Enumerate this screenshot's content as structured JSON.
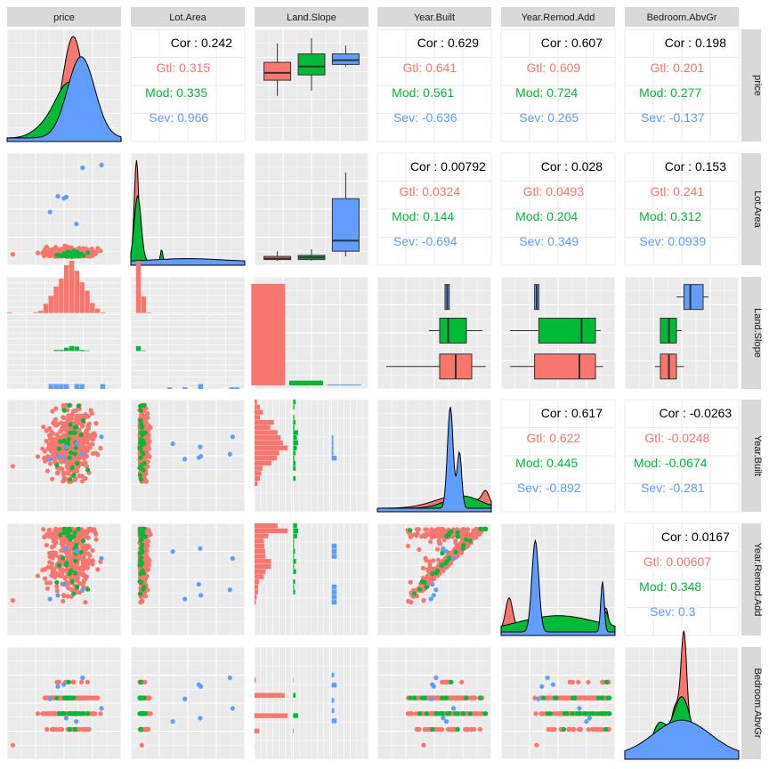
{
  "chart_data": {
    "type": "scatterplot-matrix",
    "variables": [
      "price",
      "Lot.Area",
      "Land.Slope",
      "Year.Built",
      "Year.Remod.Add",
      "Bedroom.AbvGr"
    ],
    "groups": [
      {
        "name": "Gtl",
        "color": "#F8766D"
      },
      {
        "name": "Mod",
        "color": "#00BA38"
      },
      {
        "name": "Sev",
        "color": "#619CFF"
      }
    ],
    "correlations": [
      {
        "row": "price",
        "col": "Lot.Area",
        "overall": "0.242",
        "Gtl": "0.315",
        "Mod": "0.335",
        "Sev": "0.966"
      },
      {
        "row": "price",
        "col": "Year.Built",
        "overall": "0.629",
        "Gtl": "0.641",
        "Mod": "0.561",
        "Sev": "-0.636"
      },
      {
        "row": "price",
        "col": "Year.Remod.Add",
        "overall": "0.607",
        "Gtl": "0.609",
        "Mod": "0.724",
        "Sev": "0.265"
      },
      {
        "row": "price",
        "col": "Bedroom.AbvGr",
        "overall": "0.198",
        "Gtl": "0.201",
        "Mod": "0.277",
        "Sev": "-0.137"
      },
      {
        "row": "Lot.Area",
        "col": "Year.Built",
        "overall": "0.00792",
        "Gtl": "0.0324",
        "Mod": "0.144",
        "Sev": "-0.694"
      },
      {
        "row": "Lot.Area",
        "col": "Year.Remod.Add",
        "overall": "0.028",
        "Gtl": "0.0493",
        "Mod": "0.204",
        "Sev": "0.349"
      },
      {
        "row": "Lot.Area",
        "col": "Bedroom.AbvGr",
        "overall": "0.153",
        "Gtl": "0.241",
        "Mod": "0.312",
        "Sev": "0.0939"
      },
      {
        "row": "Year.Built",
        "col": "Year.Remod.Add",
        "overall": "0.617",
        "Gtl": "0.622",
        "Mod": "0.445",
        "Sev": "-0.892"
      },
      {
        "row": "Year.Built",
        "col": "Bedroom.AbvGr",
        "overall": "-0.0263",
        "Gtl": "-0.0248",
        "Mod": "-0.0674",
        "Sev": "-0.281"
      },
      {
        "row": "Year.Remod.Add",
        "col": "Bedroom.AbvGr",
        "overall": "0.0167",
        "Gtl": "0.00607",
        "Mod": "0.348",
        "Sev": "0.3"
      }
    ],
    "labels": {
      "cor": "Cor : ",
      "gtl": "Gtl: ",
      "mod": "Mod: ",
      "sev": "Sev: "
    },
    "land_slope_counts": {
      "Gtl": 1380,
      "Mod": 65,
      "Sev": 13
    },
    "grid": true,
    "background": "#EBEBEB",
    "strip_color": "#D9D9D9"
  }
}
